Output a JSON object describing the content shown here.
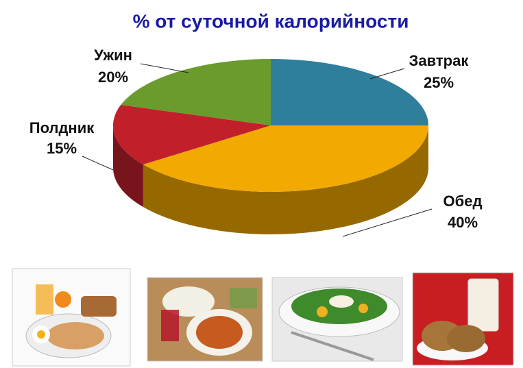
{
  "chart_data": {
    "type": "pie",
    "title": "% от суточной калорийности",
    "categories": [
      "Завтрак",
      "Обед",
      "Полдник",
      "Ужин"
    ],
    "values": [
      25,
      40,
      15,
      20
    ],
    "value_labels": [
      "25%",
      "40%",
      "15%",
      "20%"
    ],
    "colors": [
      "#2f7f9c",
      "#f2a900",
      "#c1202b",
      "#6b9b2c"
    ]
  }
}
